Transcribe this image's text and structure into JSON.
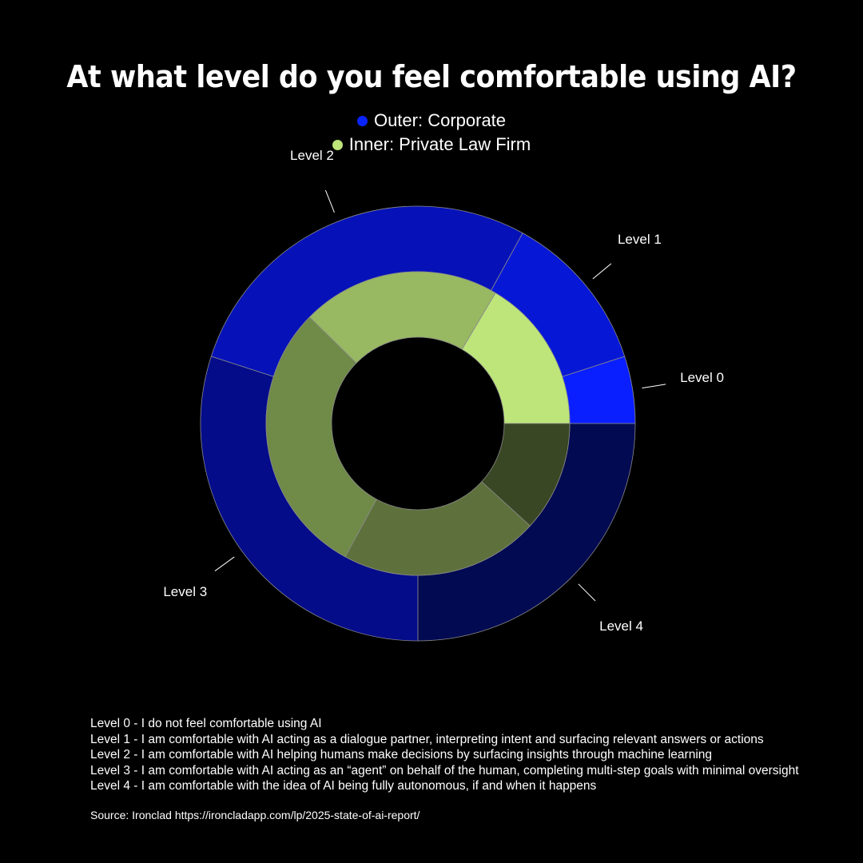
{
  "chart_data": {
    "type": "pie",
    "title": "At what level do you feel comfortable using AI?",
    "categories": [
      "Level 0",
      "Level 1",
      "Level 2",
      "Level 3",
      "Level 4"
    ],
    "series": [
      {
        "name": "Outer: Corporate",
        "ring": "outer",
        "legend_color": "#0a24ff",
        "values": [
          5,
          12,
          28,
          30,
          25
        ],
        "colors": [
          "#0a1fff",
          "#0717d6",
          "#0612b8",
          "#040c8a",
          "#020a52"
        ]
      },
      {
        "name": "Inner: Private Law Firm",
        "ring": "inner",
        "legend_color": "#bde57a",
        "values": [
          14,
          18,
          25,
          18,
          10
        ],
        "colors": [
          "#bde57a",
          "#98b862",
          "#708a48",
          "#5e713d",
          "#394724"
        ]
      }
    ],
    "slice_labels": [
      "Level 0",
      "Level 1",
      "Level 2",
      "Level 3",
      "Level 4"
    ]
  },
  "footnotes": [
    "Level 0 - I do not feel comfortable using AI",
    "Level 1  - I am comfortable with AI acting as a dialogue partner, interpreting intent and surfacing relevant answers or actions",
    "Level 2 - I am comfortable with AI helping humans make decisions by surfacing insights through machine learning",
    "Level 3 - I am comfortable with AI acting as an “agent” on behalf of the human, completing multi-step goals with minimal oversight",
    "Level 4 - I am comfortable with the idea of AI being fully autonomous, if and when it happens"
  ],
  "source": "Source: Ironclad https://ironcladapp.com/lp/2025-state-of-ai-report/"
}
